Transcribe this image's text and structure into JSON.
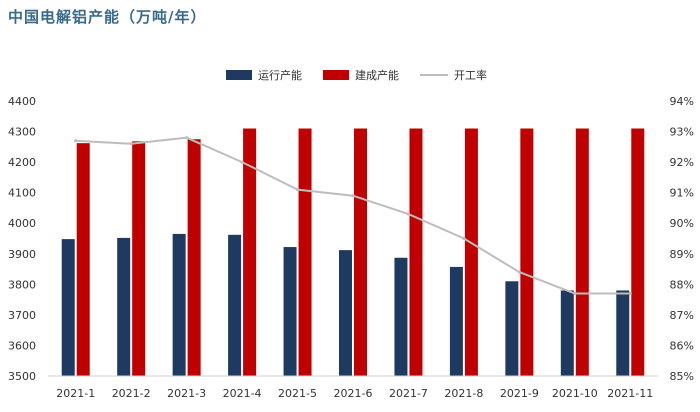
{
  "title": "中国电解铝产能（万吨/年）",
  "colors": {
    "running": "#1f3a60",
    "built": "#c00000",
    "rate": "#bdbdbd",
    "axis": "#d0d0d0"
  },
  "chart_data": {
    "type": "bar",
    "categories": [
      "2021-1",
      "2021-2",
      "2021-3",
      "2021-4",
      "2021-5",
      "2021-6",
      "2021-7",
      "2021-8",
      "2021-9",
      "2021-10",
      "2021-11"
    ],
    "series": [
      {
        "name": "运行产能",
        "kind": "bar",
        "axis": "left",
        "values": [
          3948,
          3952,
          3965,
          3962,
          3922,
          3912,
          3887,
          3857,
          3810,
          3780,
          3780
        ]
      },
      {
        "name": "建成产能",
        "kind": "bar",
        "axis": "left",
        "values": [
          4262,
          4268,
          4275,
          4310,
          4310,
          4310,
          4310,
          4310,
          4310,
          4310,
          4310
        ]
      },
      {
        "name": "开工率",
        "kind": "line",
        "axis": "right",
        "values": [
          92.7,
          92.6,
          92.8,
          92.0,
          91.1,
          90.9,
          90.3,
          89.5,
          88.4,
          87.7,
          87.7
        ]
      }
    ],
    "ylim_left": [
      3500,
      4400
    ],
    "yticks_left": [
      "3500",
      "3600",
      "3700",
      "3800",
      "3900",
      "4000",
      "4100",
      "4200",
      "4300",
      "4400"
    ],
    "ylim_right": [
      85,
      94
    ],
    "yticks_right": [
      "85%",
      "86%",
      "87%",
      "88%",
      "89%",
      "90%",
      "91%",
      "92%",
      "93%",
      "94%"
    ],
    "legend": [
      "运行产能",
      "建成产能",
      "开工率"
    ],
    "legend_position": "top-center"
  }
}
